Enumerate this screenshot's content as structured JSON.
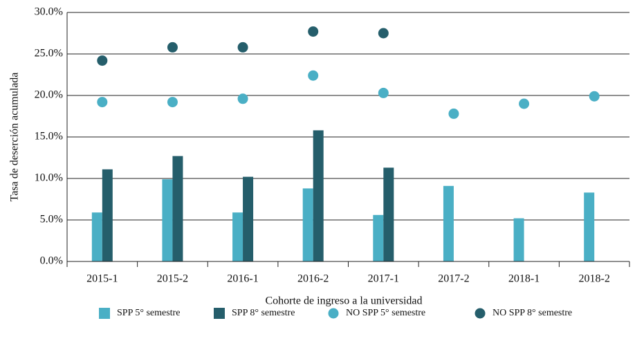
{
  "chart_data": {
    "type": "bar",
    "y_label": "Tasa de deserción acumulada",
    "x_label": "Cohorte de ingreso a la universidad",
    "categories": [
      "2015-1",
      "2015-2",
      "2016-1",
      "2016-2",
      "2017-1",
      "2017-2",
      "2018-1",
      "2018-2"
    ],
    "series": [
      {
        "name": "SPP 5° semestre",
        "type": "bar",
        "color": "#4aafc5",
        "values": [
          5.9,
          9.9,
          5.9,
          8.8,
          5.6,
          9.1,
          5.2,
          8.3
        ]
      },
      {
        "name": "SPP 8° semestre",
        "type": "bar",
        "color": "#255e6b",
        "values": [
          11.1,
          12.7,
          10.2,
          15.8,
          11.3,
          null,
          null,
          null
        ]
      },
      {
        "name": "NO SPP 5° semestre",
        "type": "scatter",
        "color": "#4aafc5",
        "values": [
          19.2,
          19.2,
          19.6,
          22.4,
          20.3,
          17.8,
          19.0,
          19.9
        ]
      },
      {
        "name": "NO SPP 8° semestre",
        "type": "scatter",
        "color": "#255e6b",
        "values": [
          24.2,
          25.8,
          25.8,
          27.7,
          27.5,
          null,
          null,
          null
        ]
      }
    ],
    "ylim": [
      0,
      30
    ],
    "yticks": [
      {
        "value": 0,
        "label": "0.0%"
      },
      {
        "value": 5,
        "label": "5.0%"
      },
      {
        "value": 10,
        "label": "10.0%"
      },
      {
        "value": 15,
        "label": "15.0%"
      },
      {
        "value": 20,
        "label": "20.0%"
      },
      {
        "value": 25,
        "label": "25.0%"
      },
      {
        "value": 30,
        "label": "30.0%"
      }
    ],
    "grid": true,
    "legend": "bottom"
  }
}
